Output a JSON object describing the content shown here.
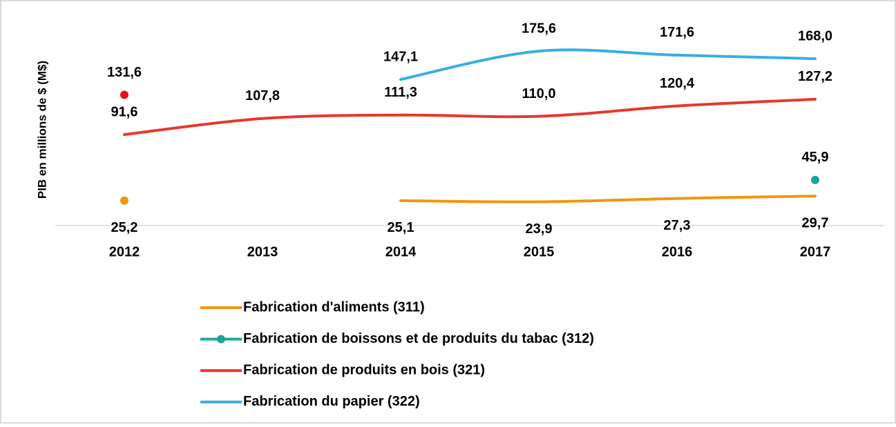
{
  "chart_data": {
    "type": "line",
    "y_label": "PIB en millions de $ (M$)",
    "categories": [
      "2012",
      "2013",
      "2014",
      "2015",
      "2016",
      "2017"
    ],
    "ylim": [
      0,
      200
    ],
    "series": [
      {
        "name": "Fabrication d'aliments (311)",
        "color": "#f0960f",
        "label_position": "below",
        "values": [
          25.2,
          null,
          25.1,
          23.9,
          27.3,
          29.7
        ],
        "value_labels": [
          "25,2",
          null,
          "25,1",
          "23,9",
          "27,3",
          "29,7"
        ]
      },
      {
        "name": "Fabrication de boissons et de produits du tabac (312)",
        "color": "#1fa39a",
        "legend_marker": true,
        "values": [
          null,
          null,
          null,
          null,
          null,
          45.9
        ],
        "value_labels": [
          null,
          null,
          null,
          null,
          null,
          "45,9"
        ]
      },
      {
        "name": "Fabrication de produits en bois (321)",
        "color": "#e8372c",
        "values": [
          91.6,
          107.8,
          111.3,
          110.0,
          120.4,
          127.2
        ],
        "value_labels": [
          "91,6",
          "107,8",
          "111,3",
          "110,0",
          "120,4",
          "127,2"
        ]
      },
      {
        "name": "Fabrication du papier (322)",
        "color": "#3aaee0",
        "marker_color": "#e8110f",
        "values": [
          131.6,
          null,
          147.1,
          175.6,
          171.6,
          168.0
        ],
        "value_labels": [
          "131,6",
          null,
          "147,1",
          "175,6",
          "171,6",
          "168,0"
        ]
      }
    ]
  }
}
